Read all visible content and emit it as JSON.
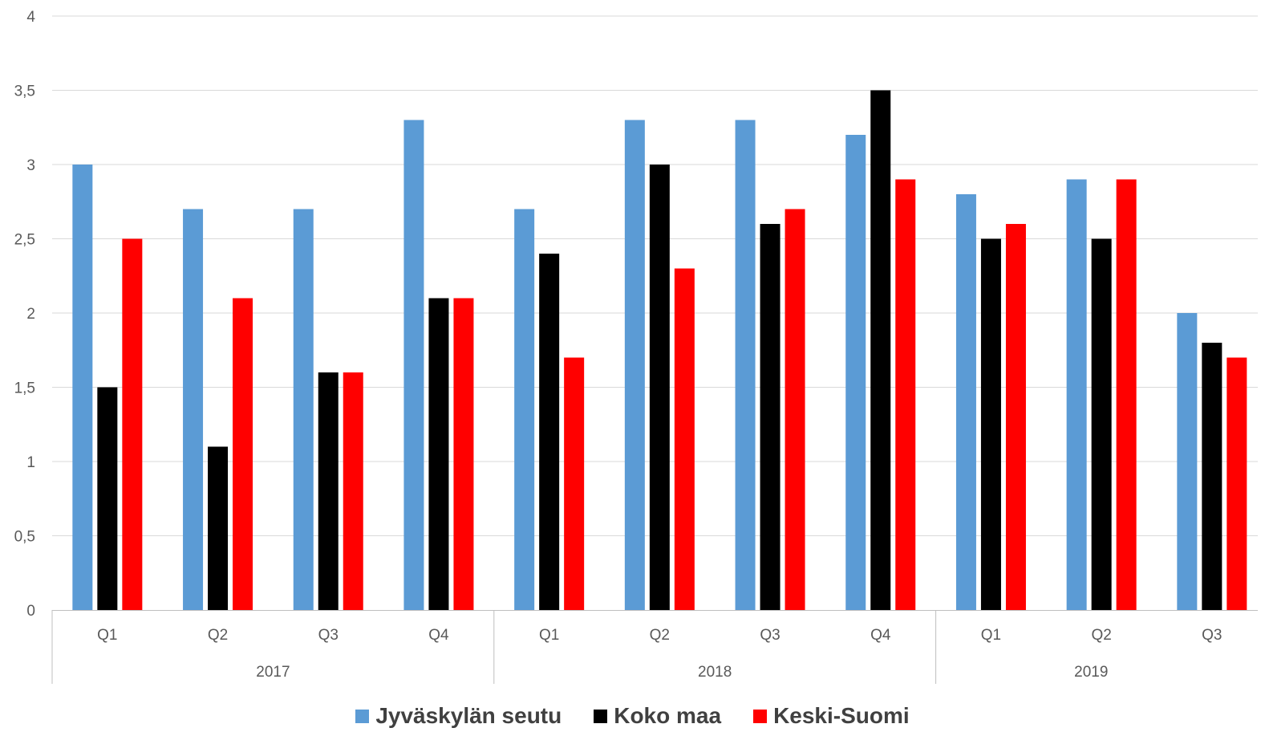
{
  "chart_data": {
    "type": "bar",
    "title": "",
    "xlabel": "",
    "ylabel": "",
    "ylim": [
      0,
      4
    ],
    "yticks": [
      "0",
      "0,5",
      "1",
      "1,5",
      "2",
      "2,5",
      "3",
      "3,5",
      "4"
    ],
    "grid": true,
    "legend_position": "bottom",
    "groups": [
      {
        "label": "2017",
        "categories": [
          "Q1",
          "Q2",
          "Q3",
          "Q4"
        ]
      },
      {
        "label": "2018",
        "categories": [
          "Q1",
          "Q2",
          "Q3",
          "Q4"
        ]
      },
      {
        "label": "2019",
        "categories": [
          "Q1",
          "Q2",
          "Q3"
        ]
      }
    ],
    "series": [
      {
        "name": "Jyväskylän seutu",
        "color": "#5b9bd5",
        "values": [
          3.0,
          2.7,
          2.7,
          3.3,
          2.7,
          3.3,
          3.3,
          3.2,
          2.8,
          2.9,
          2.0
        ]
      },
      {
        "name": "Koko maa",
        "color": "#000000",
        "values": [
          1.5,
          1.1,
          1.6,
          2.1,
          2.4,
          3.0,
          2.6,
          3.5,
          2.5,
          2.5,
          1.8
        ]
      },
      {
        "name": "Keski-Suomi",
        "color": "#ff0000",
        "values": [
          2.5,
          2.1,
          1.6,
          2.1,
          1.7,
          2.3,
          2.7,
          2.9,
          2.6,
          2.9,
          1.7
        ]
      }
    ]
  }
}
